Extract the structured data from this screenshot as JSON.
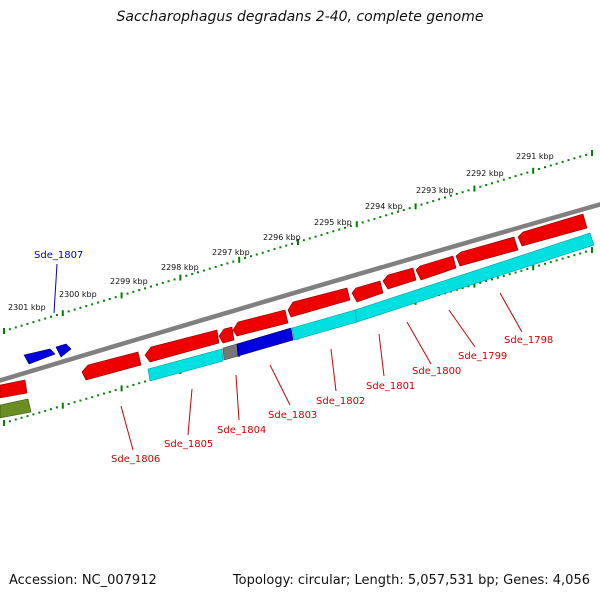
{
  "title": "Saccharophagus degradans 2-40, complete genome",
  "footer": {
    "accession": "Accession: NC_007912",
    "topology": "Topology: circular; Length: 5,057,531 bp; Genes: 4,056"
  },
  "colors": {
    "forward_gene": "#ee0000",
    "reverse_gene_blue": "#0000dd",
    "cds_feature": "#00e0e0",
    "grey_gene": "#777777",
    "olive_gene": "#6b8e23",
    "backbone": "#808080",
    "ticks": "#008000",
    "label_red": "#cc0000",
    "label_blue": "#0000cc"
  },
  "kbp_labels": [
    "2291 kbp",
    "2292 kbp",
    "2293 kbp",
    "2294 kbp",
    "2295 kbp",
    "2296 kbp",
    "2297 kbp",
    "2298 kbp",
    "2299 kbp",
    "2300 kbp",
    "2301 kbp"
  ],
  "gene_labels": [
    {
      "name": "Sde_1807",
      "color": "blue"
    },
    {
      "name": "Sde_1798",
      "color": "red"
    },
    {
      "name": "Sde_1799",
      "color": "red"
    },
    {
      "name": "Sde_1800",
      "color": "red"
    },
    {
      "name": "Sde_1801",
      "color": "red"
    },
    {
      "name": "Sde_1802",
      "color": "red"
    },
    {
      "name": "Sde_1803",
      "color": "red"
    },
    {
      "name": "Sde_1804",
      "color": "red"
    },
    {
      "name": "Sde_1805",
      "color": "red"
    },
    {
      "name": "Sde_1806",
      "color": "red"
    }
  ]
}
